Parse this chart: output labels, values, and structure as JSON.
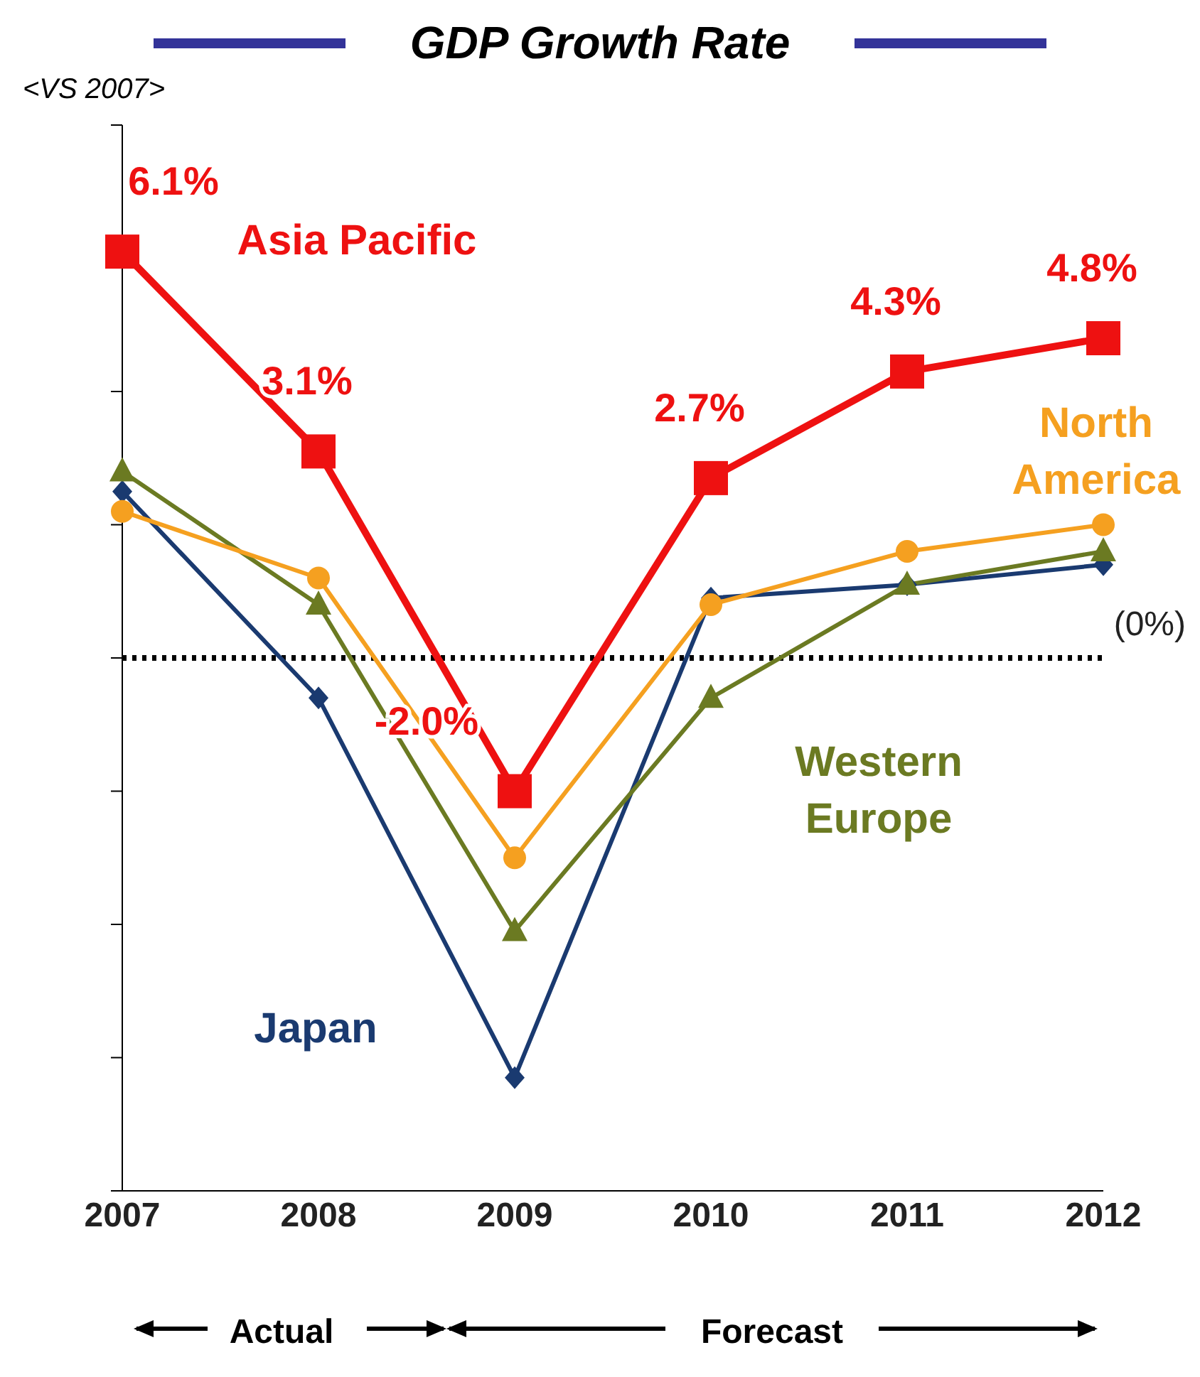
{
  "chart_data": {
    "type": "line",
    "title": "GDP Growth Rate",
    "ylabel": "<VS 2007>",
    "categories": [
      "2007",
      "2008",
      "2009",
      "2010",
      "2011",
      "2012"
    ],
    "series": [
      {
        "name": "Asia Pacific",
        "color": "#ee1111",
        "marker": "square",
        "values": [
          6.1,
          3.1,
          -2.0,
          2.7,
          4.3,
          4.8
        ],
        "value_labels": [
          "6.1%",
          "3.1%",
          "-2.0%",
          "2.7%",
          "4.3%",
          "4.8%"
        ]
      },
      {
        "name": "North America",
        "color": "#f5a020",
        "marker": "circle",
        "values": [
          2.2,
          1.2,
          -3.0,
          0.8,
          1.6,
          2.0
        ]
      },
      {
        "name": "Western Europe",
        "color": "#6b7a22",
        "marker": "triangle",
        "values": [
          2.8,
          0.8,
          -4.1,
          -0.6,
          1.1,
          1.6
        ]
      },
      {
        "name": "Japan",
        "color": "#1a3a70",
        "marker": "diamond",
        "values": [
          2.5,
          -0.6,
          -6.3,
          0.9,
          1.1,
          1.4
        ]
      }
    ],
    "ylim": [
      -8,
      8
    ],
    "yticks": [
      {
        "value": -8,
        "label": null
      },
      {
        "value": -6,
        "label": null
      },
      {
        "value": -4,
        "label": null
      },
      {
        "value": -2,
        "label": null
      },
      {
        "value": 0,
        "label": null
      },
      {
        "value": 2,
        "label": null
      },
      {
        "value": 4,
        "label": null
      },
      {
        "value": 6,
        "label": null
      },
      {
        "value": 8,
        "label": null
      }
    ],
    "tick_labels": "x",
    "grid": false,
    "legend": false,
    "ref_lines": [
      {
        "axis": "y",
        "value": 0,
        "label": "(0%)",
        "line_style": "dotted",
        "color": "#000000"
      }
    ],
    "annotations": [
      "Actual",
      "Forecast"
    ]
  }
}
